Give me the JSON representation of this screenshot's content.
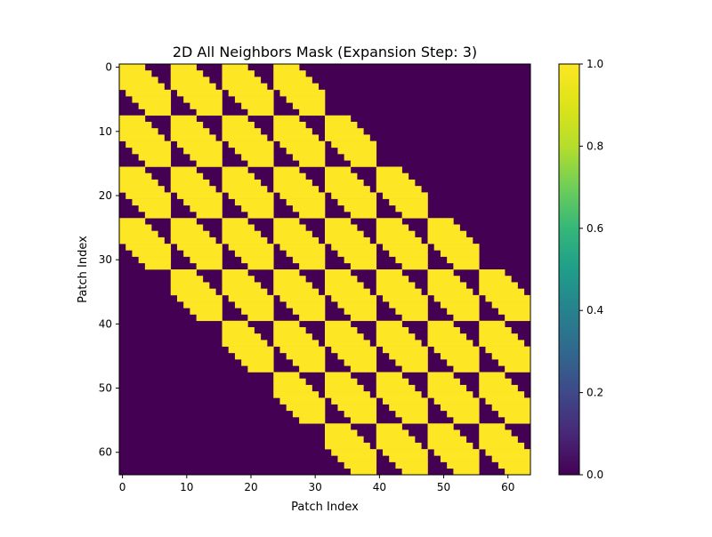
{
  "chart_data": {
    "type": "heatmap",
    "title": "2D All Neighbors Mask (Expansion Step: 3)",
    "xlabel": "Patch Index",
    "ylabel": "Patch Index",
    "grid": false,
    "size": 64,
    "grid_side": 8,
    "expansion_step": 3,
    "value_range": [
      0,
      1
    ],
    "x_ticks": [
      0,
      10,
      20,
      30,
      40,
      50,
      60
    ],
    "y_ticks": [
      0,
      10,
      20,
      30,
      40,
      50,
      60
    ],
    "colorbar": {
      "ticks": [
        "0.0",
        "0.2",
        "0.4",
        "0.6",
        "0.8",
        "1.0"
      ],
      "tick_values": [
        0,
        0.2,
        0.4,
        0.6,
        0.8,
        1.0
      ],
      "colormap": "viridis"
    },
    "colors": {
      "zero": "#440154",
      "one": "#fde725"
    }
  }
}
